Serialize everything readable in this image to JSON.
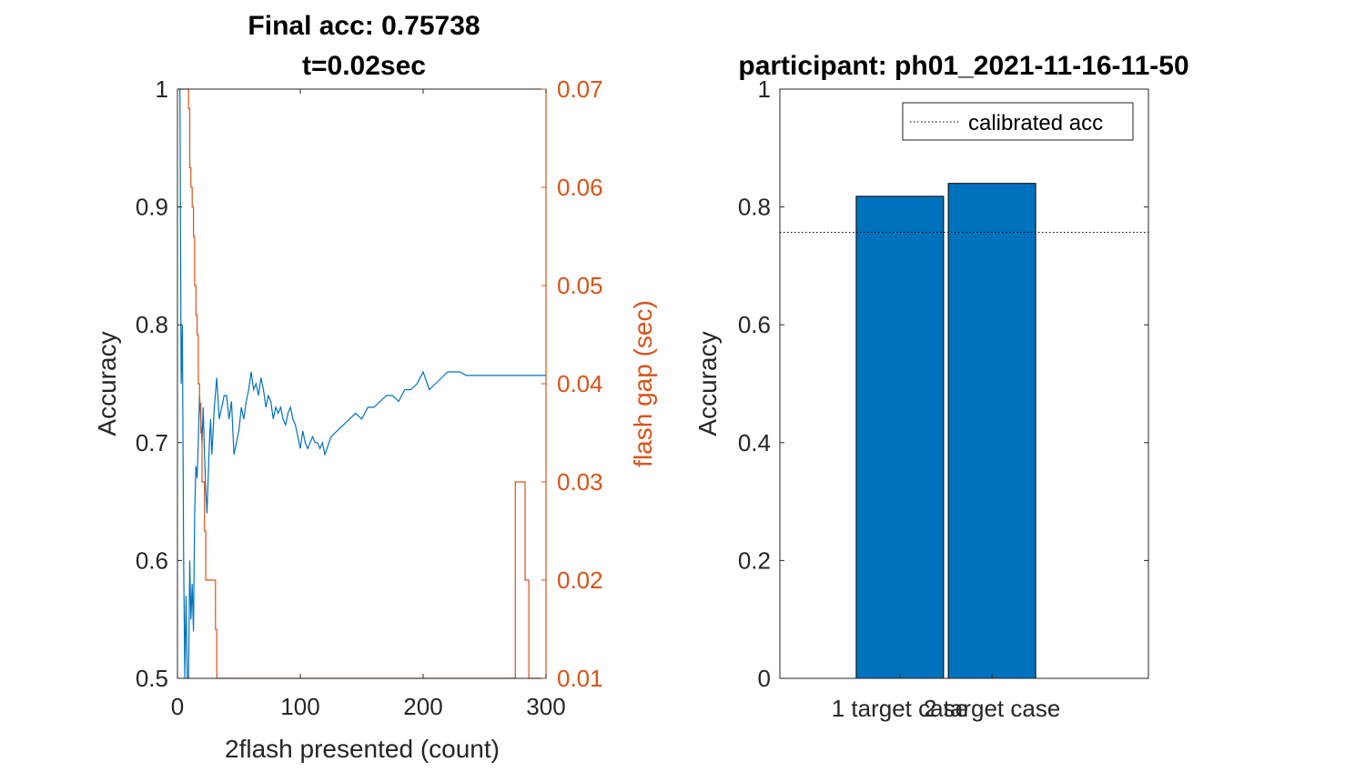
{
  "colors": {
    "accuracy_line": "#0072BD",
    "flash_gap_line": "#D95319",
    "bar_fill": "#0072BD",
    "axis": "#262626",
    "calibrated_line": "#000000"
  },
  "chart_data": [
    {
      "type": "line",
      "title": "Final acc: 0.75738",
      "subtitle": "t=0.02sec",
      "xlabel": "2flash presented (count)",
      "ylabel": "Accuracy",
      "ylabel_right": "flash gap (sec)",
      "xlim": [
        0,
        300
      ],
      "ylim": [
        0.5,
        1
      ],
      "ylim_right": [
        0.01,
        0.07
      ],
      "xticks": [
        "0",
        "100",
        "200",
        "300"
      ],
      "yticks": [
        "0.5",
        "0.6",
        "0.7",
        "0.8",
        "0.9",
        "1"
      ],
      "yticks_right": [
        "0.01",
        "0.02",
        "0.03",
        "0.04",
        "0.05",
        "0.06",
        "0.07"
      ],
      "grid": false,
      "series": [
        {
          "name": "Accuracy",
          "axis": "left",
          "x": [
            1,
            2,
            3,
            4,
            5,
            6,
            7,
            8,
            9,
            10,
            11,
            12,
            13,
            14,
            15,
            16,
            17,
            18,
            19,
            20,
            21,
            22,
            23,
            24,
            25,
            26,
            27,
            28,
            29,
            30,
            32,
            34,
            36,
            38,
            40,
            42,
            44,
            46,
            48,
            50,
            52,
            54,
            56,
            58,
            60,
            62,
            64,
            66,
            68,
            70,
            72,
            74,
            76,
            78,
            80,
            82,
            84,
            86,
            88,
            90,
            92,
            94,
            96,
            98,
            100,
            102,
            104,
            106,
            108,
            110,
            112,
            114,
            116,
            118,
            120,
            125,
            130,
            135,
            140,
            145,
            150,
            155,
            160,
            165,
            170,
            175,
            180,
            185,
            190,
            195,
            200,
            205,
            210,
            215,
            220,
            225,
            230,
            235,
            240,
            245,
            250,
            255,
            260,
            265,
            270,
            275,
            280,
            285,
            290,
            295,
            300
          ],
          "y": [
            1.0,
            1.0,
            0.75,
            0.8,
            0.6,
            0.5,
            0.57,
            0.5,
            0.5,
            0.6,
            0.55,
            0.58,
            0.54,
            0.64,
            0.68,
            0.67,
            0.7,
            0.74,
            0.72,
            0.7,
            0.73,
            0.69,
            0.66,
            0.64,
            0.67,
            0.7,
            0.72,
            0.69,
            0.71,
            0.73,
            0.755,
            0.72,
            0.73,
            0.74,
            0.74,
            0.72,
            0.735,
            0.69,
            0.7,
            0.71,
            0.73,
            0.72,
            0.735,
            0.745,
            0.76,
            0.745,
            0.75,
            0.74,
            0.755,
            0.745,
            0.73,
            0.74,
            0.735,
            0.72,
            0.73,
            0.725,
            0.73,
            0.72,
            0.715,
            0.725,
            0.73,
            0.72,
            0.715,
            0.705,
            0.695,
            0.71,
            0.7,
            0.695,
            0.7,
            0.705,
            0.7,
            0.7,
            0.695,
            0.7,
            0.69,
            0.705,
            0.71,
            0.715,
            0.72,
            0.725,
            0.72,
            0.73,
            0.73,
            0.735,
            0.74,
            0.74,
            0.735,
            0.745,
            0.745,
            0.75,
            0.76,
            0.745,
            0.75,
            0.755,
            0.76,
            0.76,
            0.76,
            0.757,
            0.757,
            0.757,
            0.757,
            0.757,
            0.757,
            0.757,
            0.757,
            0.757,
            0.757,
            0.757,
            0.757,
            0.757,
            0.757
          ]
        },
        {
          "name": "flash gap",
          "axis": "right",
          "x": [
            1,
            5,
            8,
            9,
            10,
            11,
            12,
            13,
            14,
            15,
            16,
            17,
            18,
            19,
            20,
            22,
            23,
            24,
            25,
            30,
            31,
            32,
            33,
            34,
            40,
            100,
            150,
            200,
            250,
            274,
            275,
            276,
            282,
            283,
            285,
            286,
            287,
            288,
            300
          ],
          "y": [
            0.07,
            0.07,
            0.07,
            0.068,
            0.062,
            0.06,
            0.058,
            0.055,
            0.05,
            0.047,
            0.045,
            0.04,
            0.038,
            0.035,
            0.03,
            0.025,
            0.02,
            0.02,
            0.02,
            0.02,
            0.015,
            0.01,
            0.01,
            0.01,
            0.01,
            0.01,
            0.01,
            0.01,
            0.01,
            0.01,
            0.03,
            0.03,
            0.03,
            0.02,
            0.02,
            0.01,
            0.01,
            0.01,
            0.01
          ]
        }
      ]
    },
    {
      "type": "bar",
      "title": "participant: ph01_2021-11-16-11-50",
      "ylabel": "Accuracy",
      "ylim": [
        0,
        1
      ],
      "yticks": [
        "0",
        "0.2",
        "0.4",
        "0.6",
        "0.8",
        "1"
      ],
      "categories": [
        "1 target case",
        "2 target case"
      ],
      "values": [
        0.818,
        0.84
      ],
      "reference_line": {
        "name": "calibrated acc",
        "value": 0.757,
        "style": "dotted"
      },
      "legend": {
        "position": "top-right",
        "entries": [
          "calibrated acc"
        ]
      },
      "grid": false
    }
  ]
}
